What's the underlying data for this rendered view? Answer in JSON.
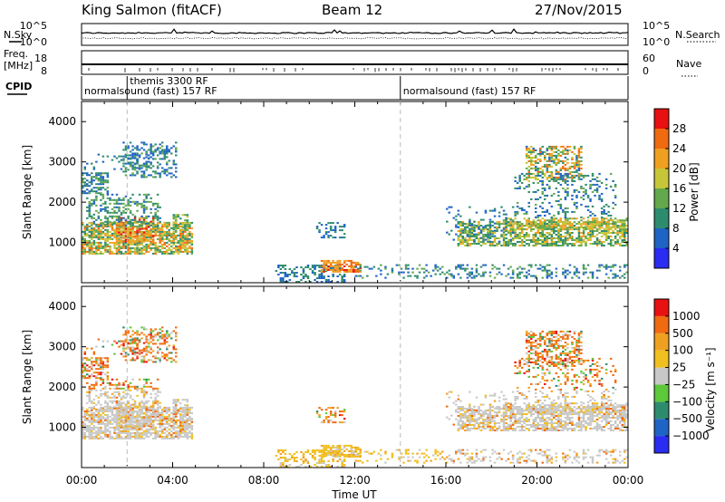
{
  "header": {
    "station": "King Salmon (fitACF)",
    "beam": "Beam 12",
    "date": "27/Nov/2015"
  },
  "chart_data": [
    {
      "type": "line",
      "name": "noise-panel",
      "left_label": "N.Sky",
      "right_label": "N.Search",
      "left_ticks": [
        "10^5",
        "10^0"
      ],
      "right_ticks": [
        "10^5",
        "10^0"
      ],
      "series": [
        {
          "name": "N.Sky",
          "style": "solid"
        },
        {
          "name": "N.Search",
          "style": "dotted"
        }
      ]
    },
    {
      "type": "line",
      "name": "frequency-panel",
      "left_label_1": "Freq.",
      "left_label_2": "[MHz]",
      "right_label": "Nave",
      "left_ticks": [
        "18",
        "8"
      ],
      "right_ticks": [
        "60",
        "0"
      ],
      "left_range": [
        8,
        18
      ],
      "right_range": [
        0,
        60
      ]
    },
    {
      "type": "table",
      "name": "cpid-panel",
      "label": "CPID",
      "segments": [
        {
          "start_h": 0.0,
          "text": "normalsound (fast) 157 RF"
        },
        {
          "start_h": 2.0,
          "text": "themis 3300 RF",
          "raised": true
        },
        {
          "start_h": 14.0,
          "text": "normalsound (fast) 157 RF"
        }
      ]
    },
    {
      "type": "heatmap",
      "name": "power-panel",
      "ylabel": "Slant Range [km]",
      "ylim": [
        0,
        4500
      ],
      "yticks": [
        1000,
        2000,
        3000,
        4000
      ],
      "xlim_hours": [
        0,
        24
      ],
      "colorbar": {
        "label": "Power [dB]",
        "ticks": [
          4,
          8,
          12,
          16,
          20,
          24,
          28
        ],
        "range": [
          0,
          32
        ],
        "colors": [
          "#2a2cf2",
          "#1f64c4",
          "#2e8c6e",
          "#63a84c",
          "#c6c638",
          "#f0a020",
          "#f06a10",
          "#e81010"
        ]
      }
    },
    {
      "type": "heatmap",
      "name": "velocity-panel",
      "ylabel": "Slant Range [km]",
      "xlabel": "Time UT",
      "ylim": [
        0,
        4500
      ],
      "yticks": [
        1000,
        2000,
        3000,
        4000
      ],
      "xlim_hours": [
        0,
        24
      ],
      "xticks": [
        "00:00",
        "04:00",
        "08:00",
        "12:00",
        "16:00",
        "20:00",
        "00:00"
      ],
      "colorbar": {
        "label": "Velocity [m s⁻¹]",
        "ticks": [
          "1000",
          "500",
          "100",
          "25",
          "−25",
          "−100",
          "−500",
          "−1000"
        ],
        "colors": [
          "#2a2cf2",
          "#1f64c4",
          "#2e8c6e",
          "#5cc83a",
          "#c8c8c8",
          "#f0c020",
          "#f0a020",
          "#f06a10",
          "#e81010"
        ]
      }
    }
  ]
}
